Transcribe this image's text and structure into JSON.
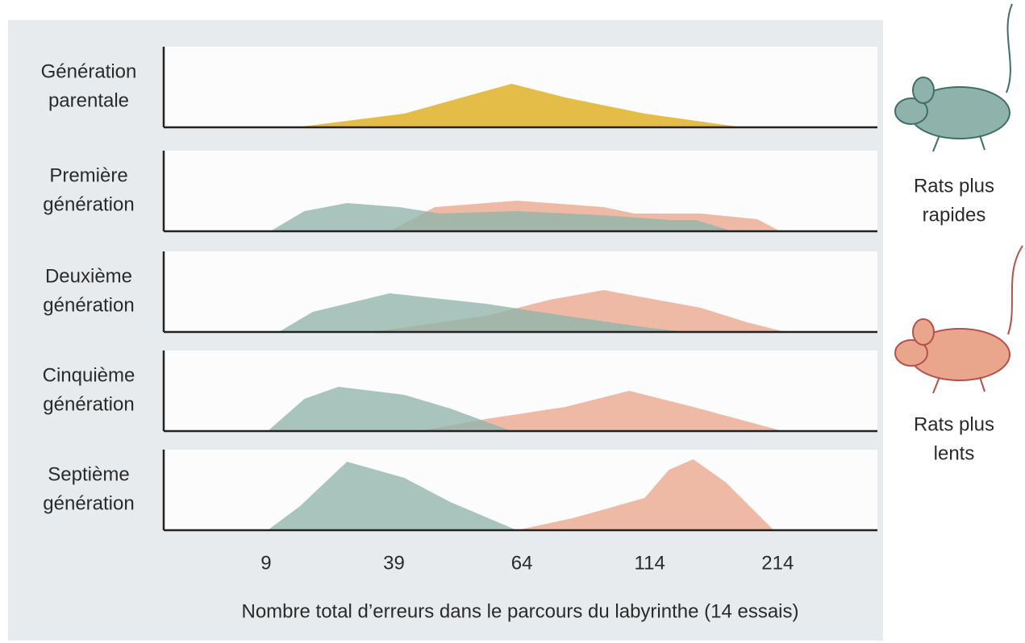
{
  "chart_data": {
    "type": "ridgeline",
    "xlabel": "Nombre total d’erreurs dans le parcours du labyrinthe (14 essais)",
    "xscale": "piecewise",
    "xlim": [
      -15,
      292
    ],
    "xticks": [
      9,
      39,
      64,
      114,
      214
    ],
    "ylim": [
      0,
      100
    ],
    "opacity": 0.78,
    "legend": [
      {
        "label": [
          "Rats plus",
          "rapides"
        ],
        "color": "#8fb3aa"
      },
      {
        "label": [
          "Rats plus",
          "lents"
        ],
        "color": "#e9a68d"
      }
    ],
    "panels": [
      {
        "label": [
          "Génération",
          "parentale"
        ],
        "series": [
          {
            "color": "#dcab14",
            "x": [
              16,
              41,
              54,
              62,
              81,
              112,
              186
            ],
            "values": [
              0,
              17,
              40,
              54,
              37,
              17,
              0
            ]
          }
        ]
      },
      {
        "label": [
          "Première",
          "génération"
        ],
        "series": [
          {
            "color": "#e9a68d",
            "x": [
              38,
              47,
              63,
              96,
              108,
              154,
              198,
              216
            ],
            "values": [
              0,
              30,
              38,
              30,
              22,
              22,
              15,
              0
            ]
          },
          {
            "color": "#8fb3aa",
            "x": [
              10,
              18,
              28,
              40,
              48,
              63,
              95,
              130,
              150,
              179
            ],
            "values": [
              0,
              25,
              35,
              30,
              22,
              25,
              20,
              14,
              14,
              0
            ]
          }
        ]
      },
      {
        "label": [
          "Deuxième",
          "génération"
        ],
        "series": [
          {
            "color": "#e9a68d",
            "x": [
              34,
              57,
              75,
              96,
              154,
              190,
              220
            ],
            "values": [
              0,
              20,
              40,
              52,
              30,
              12,
              0
            ]
          },
          {
            "color": "#8fb3aa",
            "x": [
              12,
              20,
              38,
              57,
              81,
              112,
              142
            ],
            "values": [
              0,
              25,
              48,
              35,
              20,
              6,
              0
            ]
          }
        ]
      },
      {
        "label": [
          "Cinquième",
          "génération"
        ],
        "series": [
          {
            "color": "#e9a68d",
            "x": [
              44,
              57,
              81,
              106,
              148,
              190,
              218
            ],
            "values": [
              0,
              15,
              30,
              50,
              30,
              12,
              0
            ]
          },
          {
            "color": "#8fb3aa",
            "x": [
              9.4,
              18,
              26,
              41,
              50,
              62
            ],
            "values": [
              0,
              40,
              55,
              45,
              28,
              0
            ]
          }
        ]
      },
      {
        "label": [
          "Septième",
          "génération"
        ],
        "series": [
          {
            "color": "#e9a68d",
            "x": [
              63,
              84,
              112,
              129,
              148,
              173,
              211
            ],
            "values": [
              0,
              15,
              40,
              75,
              88,
              60,
              0
            ]
          },
          {
            "color": "#8fb3aa",
            "x": [
              9.4,
              17,
              28,
              41,
              50,
              63
            ],
            "values": [
              0,
              30,
              85,
              65,
              35,
              0
            ]
          }
        ]
      }
    ]
  }
}
